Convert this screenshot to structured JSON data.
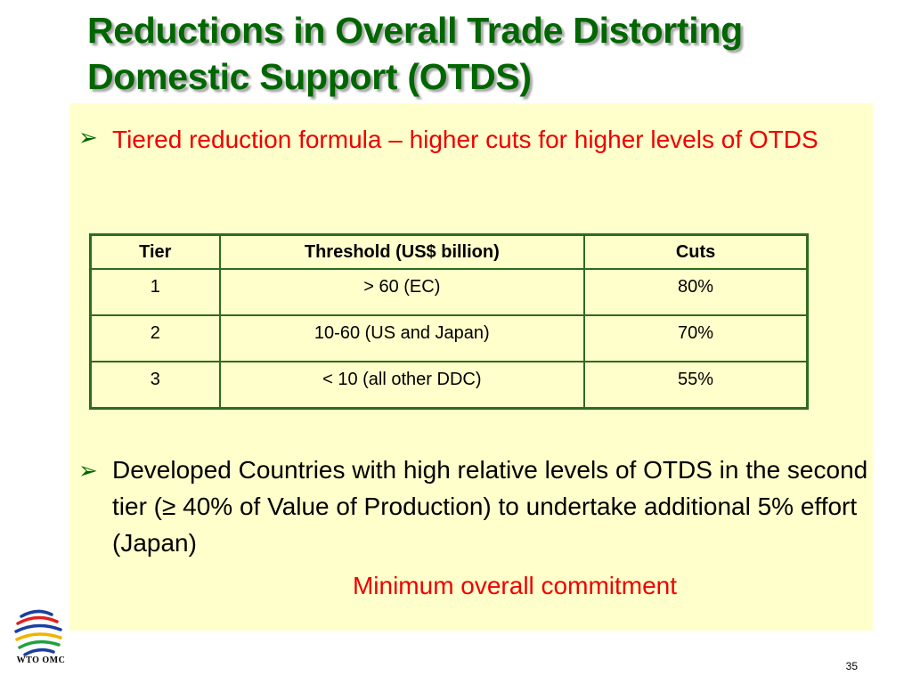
{
  "slide": {
    "title_line1": "Reductions in Overall Trade Distorting",
    "title_line2": "Domestic Support (OTDS)",
    "page_number": "35"
  },
  "bullets": [
    {
      "symbol": "➢",
      "text": "Tiered reduction formula – higher cuts for higher levels of OTDS"
    },
    {
      "symbol": "➢",
      "text": "Developed Countries with high relative levels of OTDS in the second tier  (≥ 40% of Value of Production) to undertake additional 5% effort (Japan)"
    }
  ],
  "note": "Minimum overall commitment",
  "table": {
    "headers": [
      "Tier",
      "Threshold (US$ billion)",
      "Cuts"
    ],
    "rows": [
      [
        "1",
        "> 60  (EC)",
        "80%"
      ],
      [
        "2",
        "10-60  (US and Japan)",
        "70%"
      ],
      [
        "3",
        "< 10 (all other DDC)",
        "55%"
      ]
    ]
  },
  "logo": {
    "icon": "wto-globe-logo-icon",
    "text": "WTO OMC"
  },
  "colors": {
    "title": "#006600",
    "highlight_text": "#ee0000",
    "content_background": "#ffffcc",
    "table_border": "#2e6b1f"
  }
}
